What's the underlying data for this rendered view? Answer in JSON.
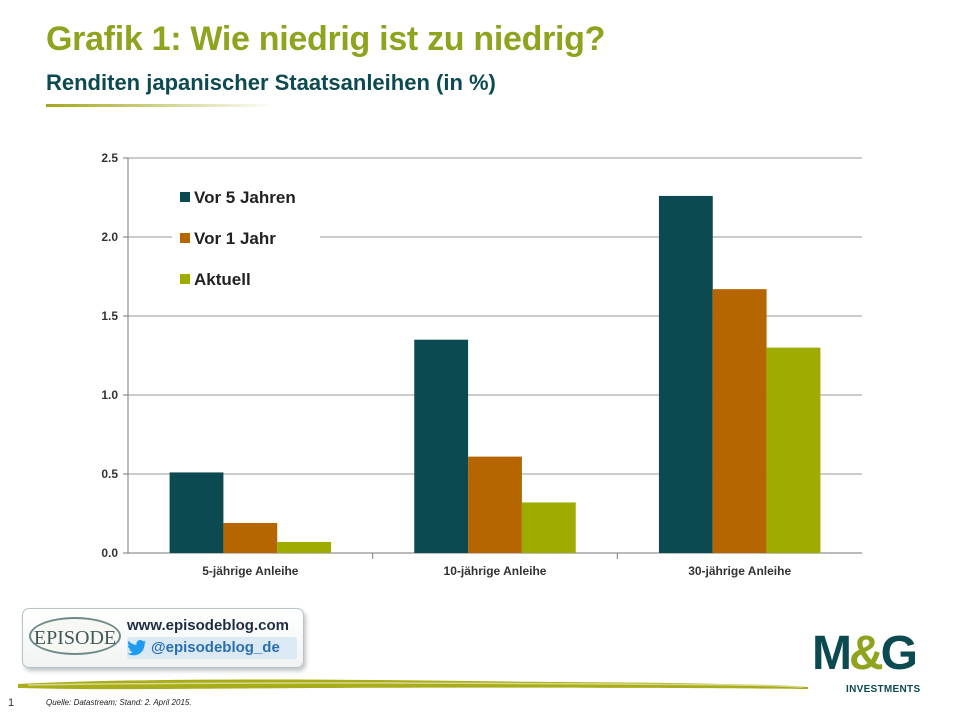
{
  "header": {
    "title": "Grafik 1: Wie niedrig ist zu niedrig?",
    "subtitle": "Renditen japanischer Staatsanleihen (in %)"
  },
  "chart_data": {
    "type": "bar",
    "categories": [
      "5-jährige Anleihe",
      "10-jährige Anleihe",
      "30-jährige Anleihe"
    ],
    "series": [
      {
        "name": "Vor 5 Jahren",
        "color": "#0c4a52",
        "values": [
          0.51,
          1.35,
          2.26
        ]
      },
      {
        "name": "Vor 1 Jahr",
        "color": "#b66600",
        "values": [
          0.19,
          0.61,
          1.67
        ]
      },
      {
        "name": "Aktuell",
        "color": "#9eac00",
        "values": [
          0.07,
          0.32,
          1.3
        ]
      }
    ],
    "yticks": [
      "0.0",
      "0.5",
      "1.0",
      "1.5",
      "2.0",
      "2.5"
    ],
    "ylim": [
      0,
      2.5
    ],
    "grid": true,
    "legend": "top-left"
  },
  "badge": {
    "logo_text": "EPISODE",
    "website": "www.episodeblog.com",
    "twitter_handle": "@episodeblog_de"
  },
  "brand": {
    "logo_main_m": "M",
    "logo_amp": "&",
    "logo_main_g": "G",
    "logo_sub": "INVESTMENTS"
  },
  "footer": {
    "page_number": "1",
    "source": "Quelle: Datastream;  Stand: 2. April 2015."
  }
}
